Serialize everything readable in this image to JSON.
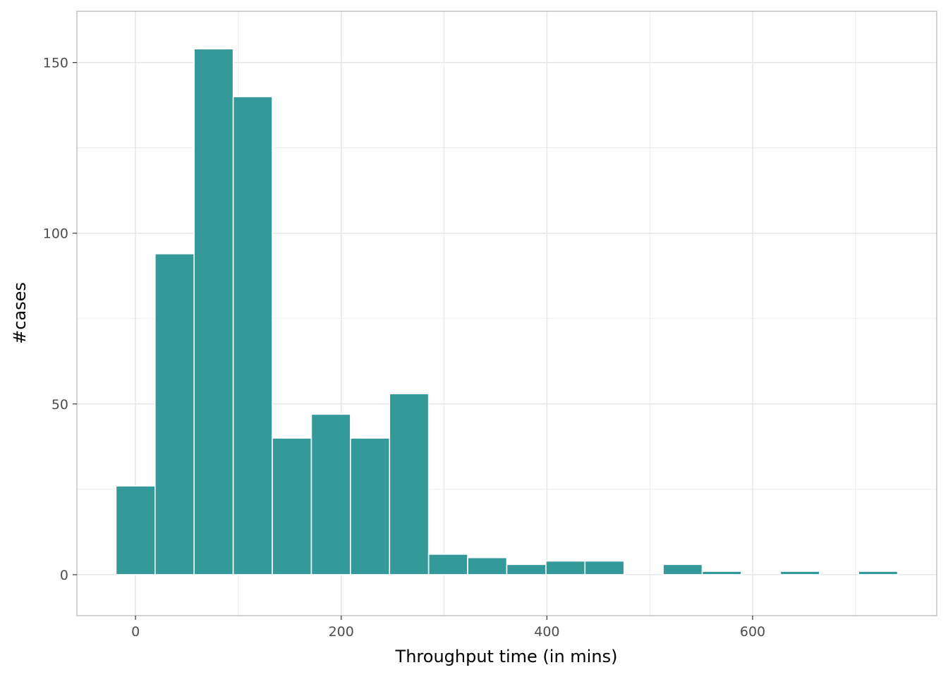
{
  "chart_data": {
    "type": "bar",
    "subtype": "histogram",
    "title": "",
    "xlabel": "Throughput time (in mins)",
    "ylabel": "#cases",
    "bin_width": 38,
    "bins": [
      {
        "center": 0,
        "count": 26
      },
      {
        "center": 38,
        "count": 94
      },
      {
        "center": 76,
        "count": 154
      },
      {
        "center": 114,
        "count": 140
      },
      {
        "center": 152,
        "count": 40
      },
      {
        "center": 190,
        "count": 47
      },
      {
        "center": 228,
        "count": 40
      },
      {
        "center": 266,
        "count": 53
      },
      {
        "center": 304,
        "count": 6
      },
      {
        "center": 342,
        "count": 5
      },
      {
        "center": 380,
        "count": 3
      },
      {
        "center": 418,
        "count": 4
      },
      {
        "center": 456,
        "count": 4
      },
      {
        "center": 494,
        "count": 0
      },
      {
        "center": 532,
        "count": 3
      },
      {
        "center": 570,
        "count": 1
      },
      {
        "center": 608,
        "count": 0
      },
      {
        "center": 646,
        "count": 1
      },
      {
        "center": 684,
        "count": 0
      },
      {
        "center": 722,
        "count": 1
      }
    ],
    "xlim": [
      -57,
      779
    ],
    "ylim": [
      -12,
      165
    ],
    "x_ticks": [
      0,
      200,
      400,
      600
    ],
    "x_tick_labels": [
      "0",
      "200",
      "400",
      "600"
    ],
    "y_ticks": [
      0,
      50,
      100,
      150
    ],
    "y_tick_labels": [
      "0",
      "50",
      "100",
      "150"
    ],
    "x_minor_ticks": [
      -100,
      100,
      300,
      500,
      700
    ],
    "y_minor_ticks": [
      25,
      75,
      125
    ],
    "grid": true,
    "colors": {
      "bar_fill": "#339999",
      "bar_outline": "#ffffff",
      "grid": "#e6e6e6",
      "panel_border": "#b3b3b3"
    }
  }
}
